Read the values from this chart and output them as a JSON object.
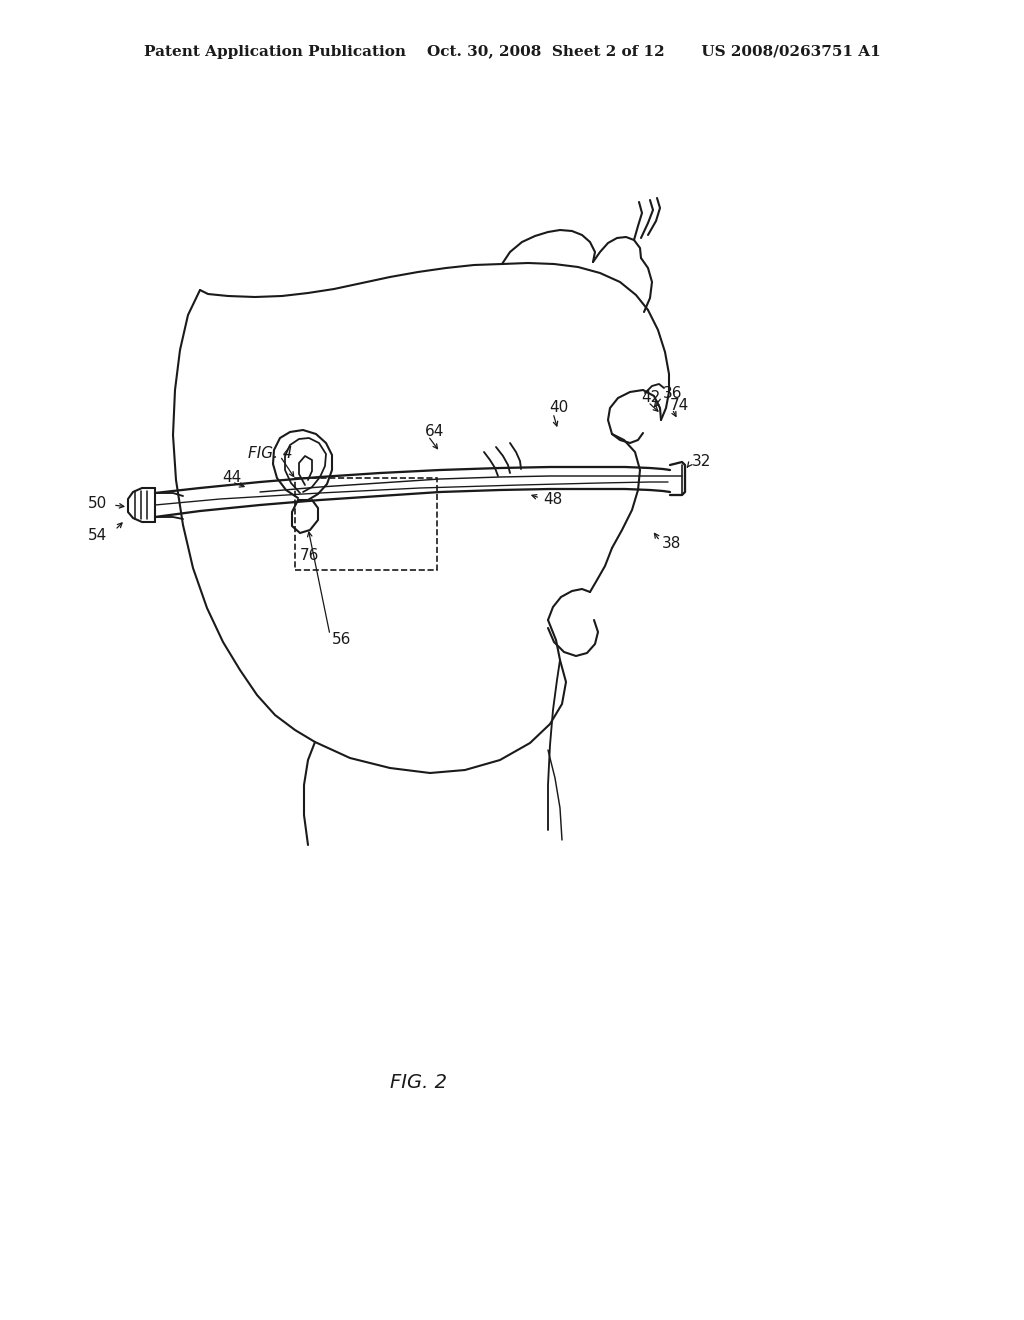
{
  "background_color": "#ffffff",
  "line_color": "#1a1a1a",
  "lw": 1.5,
  "header": "Patent Application Publication    Oct. 30, 2008  Sheet 2 of 12       US 2008/0263751 A1",
  "fig2": "FIG. 2",
  "fig4": "FIG. 4",
  "fs_header": 11,
  "fs_label": 11,
  "fs_fig": 14
}
